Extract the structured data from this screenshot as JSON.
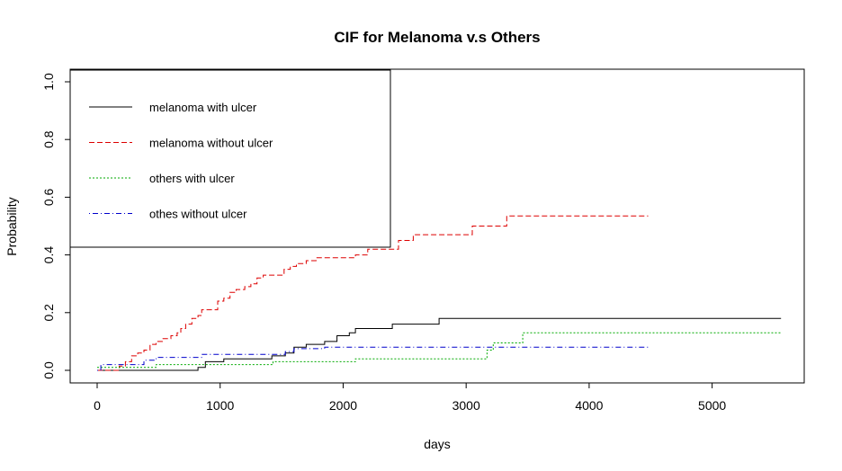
{
  "chart_data": {
    "type": "line",
    "title": "CIF for Melanoma v.s Others",
    "xlabel": "days",
    "ylabel": "Probability",
    "xlim": [
      0,
      5600
    ],
    "ylim": [
      0,
      1
    ],
    "xticks": [
      0,
      1000,
      2000,
      3000,
      4000,
      5000
    ],
    "yticks": [
      0.0,
      0.2,
      0.4,
      0.6,
      0.8,
      1.0
    ],
    "ytick_labels": [
      "0.0",
      "0.2",
      "0.4",
      "0.6",
      "0.8",
      "1.0"
    ],
    "grid": false,
    "legend_position": "top-left",
    "series": [
      {
        "name": "melanoma with ulcer",
        "color": "#000000",
        "dash": "solid",
        "points": [
          [
            0,
            0
          ],
          [
            820,
            0
          ],
          [
            820,
            0.01
          ],
          [
            880,
            0.01
          ],
          [
            880,
            0.03
          ],
          [
            1030,
            0.03
          ],
          [
            1030,
            0.04
          ],
          [
            1420,
            0.04
          ],
          [
            1420,
            0.05
          ],
          [
            1530,
            0.05
          ],
          [
            1530,
            0.06
          ],
          [
            1600,
            0.06
          ],
          [
            1600,
            0.08
          ],
          [
            1700,
            0.08
          ],
          [
            1700,
            0.09
          ],
          [
            1850,
            0.09
          ],
          [
            1850,
            0.1
          ],
          [
            1950,
            0.1
          ],
          [
            1950,
            0.12
          ],
          [
            2050,
            0.12
          ],
          [
            2050,
            0.13
          ],
          [
            2100,
            0.13
          ],
          [
            2100,
            0.145
          ],
          [
            2400,
            0.145
          ],
          [
            2400,
            0.16
          ],
          [
            2780,
            0.16
          ],
          [
            2780,
            0.18
          ],
          [
            5560,
            0.18
          ]
        ]
      },
      {
        "name": "melanoma without ulcer",
        "color": "#dd0000",
        "dash": "dashed",
        "points": [
          [
            0,
            0
          ],
          [
            180,
            0
          ],
          [
            180,
            0.015
          ],
          [
            230,
            0.015
          ],
          [
            230,
            0.03
          ],
          [
            280,
            0.03
          ],
          [
            280,
            0.05
          ],
          [
            330,
            0.05
          ],
          [
            330,
            0.06
          ],
          [
            380,
            0.06
          ],
          [
            380,
            0.07
          ],
          [
            430,
            0.07
          ],
          [
            430,
            0.09
          ],
          [
            480,
            0.09
          ],
          [
            480,
            0.1
          ],
          [
            530,
            0.1
          ],
          [
            530,
            0.11
          ],
          [
            600,
            0.11
          ],
          [
            600,
            0.12
          ],
          [
            650,
            0.12
          ],
          [
            650,
            0.13
          ],
          [
            680,
            0.13
          ],
          [
            680,
            0.145
          ],
          [
            720,
            0.145
          ],
          [
            720,
            0.16
          ],
          [
            770,
            0.16
          ],
          [
            770,
            0.18
          ],
          [
            820,
            0.18
          ],
          [
            820,
            0.19
          ],
          [
            850,
            0.19
          ],
          [
            850,
            0.21
          ],
          [
            980,
            0.21
          ],
          [
            980,
            0.24
          ],
          [
            1030,
            0.24
          ],
          [
            1030,
            0.25
          ],
          [
            1080,
            0.25
          ],
          [
            1080,
            0.27
          ],
          [
            1130,
            0.27
          ],
          [
            1130,
            0.28
          ],
          [
            1200,
            0.28
          ],
          [
            1200,
            0.29
          ],
          [
            1250,
            0.29
          ],
          [
            1250,
            0.3
          ],
          [
            1300,
            0.3
          ],
          [
            1300,
            0.32
          ],
          [
            1350,
            0.32
          ],
          [
            1350,
            0.33
          ],
          [
            1520,
            0.33
          ],
          [
            1520,
            0.35
          ],
          [
            1570,
            0.35
          ],
          [
            1570,
            0.36
          ],
          [
            1620,
            0.36
          ],
          [
            1620,
            0.37
          ],
          [
            1700,
            0.37
          ],
          [
            1700,
            0.38
          ],
          [
            1780,
            0.38
          ],
          [
            1780,
            0.39
          ],
          [
            2100,
            0.39
          ],
          [
            2100,
            0.4
          ],
          [
            2200,
            0.4
          ],
          [
            2200,
            0.42
          ],
          [
            2450,
            0.42
          ],
          [
            2450,
            0.45
          ],
          [
            2570,
            0.45
          ],
          [
            2570,
            0.47
          ],
          [
            3050,
            0.47
          ],
          [
            3050,
            0.5
          ],
          [
            3330,
            0.5
          ],
          [
            3330,
            0.535
          ],
          [
            4480,
            0.535
          ]
        ]
      },
      {
        "name": "others with ulcer",
        "color": "#00aa00",
        "dash": "dotted",
        "points": [
          [
            0,
            0.01
          ],
          [
            480,
            0.01
          ],
          [
            480,
            0.02
          ],
          [
            1430,
            0.02
          ],
          [
            1430,
            0.03
          ],
          [
            2100,
            0.03
          ],
          [
            2100,
            0.04
          ],
          [
            3170,
            0.04
          ],
          [
            3170,
            0.07
          ],
          [
            3220,
            0.07
          ],
          [
            3220,
            0.095
          ],
          [
            3460,
            0.095
          ],
          [
            3460,
            0.13
          ],
          [
            5560,
            0.13
          ]
        ]
      },
      {
        "name": "othes without ulcer",
        "color": "#0000cc",
        "dash": "dotdash",
        "points": [
          [
            0,
            0
          ],
          [
            30,
            0
          ],
          [
            30,
            0.02
          ],
          [
            380,
            0.02
          ],
          [
            380,
            0.035
          ],
          [
            480,
            0.035
          ],
          [
            480,
            0.045
          ],
          [
            850,
            0.045
          ],
          [
            850,
            0.055
          ],
          [
            1530,
            0.055
          ],
          [
            1530,
            0.065
          ],
          [
            1600,
            0.065
          ],
          [
            1600,
            0.075
          ],
          [
            1850,
            0.075
          ],
          [
            1850,
            0.08
          ],
          [
            4480,
            0.08
          ]
        ]
      }
    ]
  }
}
